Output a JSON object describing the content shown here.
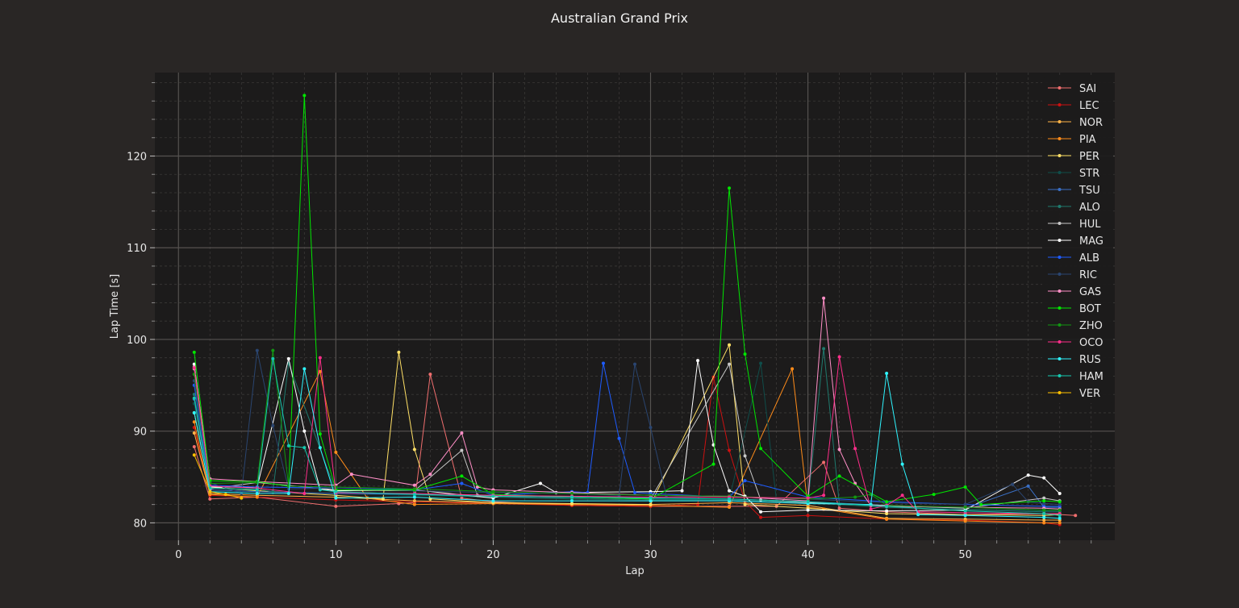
{
  "chart_data": {
    "type": "line",
    "title": "Australian Grand Prix",
    "xlabel": "Lap",
    "ylabel": "Lap Time [s]",
    "xlim": [
      -1.5,
      59.5
    ],
    "ylim": [
      78.1,
      129.1
    ],
    "xticks": [
      0,
      10,
      20,
      30,
      40,
      50
    ],
    "yticks": [
      80,
      90,
      100,
      110,
      120
    ],
    "grid": true,
    "legend_position": "top-right",
    "series": [
      {
        "name": "SAI",
        "color": "#f06e6e",
        "x": [
          1,
          2,
          5,
          10,
          14,
          15,
          16,
          18,
          20,
          25,
          30,
          35,
          38,
          41,
          42,
          45,
          50,
          55,
          57
        ],
        "y": [
          88.3,
          82.6,
          82.8,
          81.8,
          82.1,
          82.2,
          96.2,
          82.7,
          82.3,
          81.9,
          81.8,
          81.8,
          81.8,
          86.6,
          81.6,
          81.2,
          80.9,
          81.0,
          80.8
        ]
      },
      {
        "name": "LEC",
        "color": "#cc1111",
        "x": [
          1,
          2,
          5,
          10,
          15,
          20,
          25,
          30,
          33,
          34,
          35,
          36,
          37,
          40,
          45,
          50,
          55,
          56
        ],
        "y": [
          90.4,
          83.0,
          82.8,
          82.5,
          82.3,
          82.1,
          81.9,
          81.8,
          82.0,
          95.9,
          87.9,
          82.3,
          80.6,
          80.8,
          80.4,
          80.3,
          80.0,
          79.8
        ]
      },
      {
        "name": "NOR",
        "color": "#ffb347",
        "x": [
          1,
          2,
          5,
          10,
          15,
          20,
          25,
          30,
          35,
          40,
          45,
          50,
          55,
          56
        ],
        "y": [
          89.8,
          83.2,
          83.0,
          82.8,
          82.4,
          82.2,
          82.0,
          82.0,
          82.2,
          81.9,
          80.5,
          80.4,
          80.3,
          80.3
        ]
      },
      {
        "name": "PIA",
        "color": "#ff8c1a",
        "x": [
          1,
          2,
          5,
          9,
          10,
          12,
          15,
          20,
          25,
          30,
          35,
          39,
          40,
          41,
          45,
          50,
          55,
          56
        ],
        "y": [
          91.0,
          83.1,
          82.8,
          96.5,
          87.7,
          82.7,
          82.0,
          82.1,
          82.0,
          81.9,
          81.7,
          96.8,
          81.7,
          81.5,
          80.4,
          80.2,
          80.0,
          80.0
        ]
      },
      {
        "name": "PER",
        "color": "#ffe066",
        "x": [
          1,
          2,
          5,
          10,
          13,
          14,
          15,
          16,
          20,
          25,
          30,
          35,
          36,
          40,
          45,
          50,
          55,
          56
        ],
        "y": [
          92.0,
          83.9,
          83.5,
          83.0,
          82.6,
          98.6,
          88.0,
          82.6,
          82.2,
          82.1,
          82.0,
          99.4,
          82.0,
          81.6,
          81.0,
          80.9,
          80.8,
          80.9
        ]
      },
      {
        "name": "STR",
        "color": "#0f4d4a",
        "x": [
          1,
          2,
          5,
          10,
          15,
          20,
          25,
          30,
          35,
          37,
          38,
          40,
          45,
          50,
          55,
          56
        ],
        "y": [
          93.0,
          83.4,
          83.4,
          83.2,
          83.0,
          82.8,
          82.7,
          82.6,
          82.5,
          97.4,
          82.4,
          82.2,
          81.8,
          81.5,
          81.3,
          81.3
        ]
      },
      {
        "name": "TSU",
        "color": "#3a6fc4",
        "x": [
          1,
          2,
          5,
          10,
          15,
          20,
          25,
          30,
          35,
          40,
          45,
          50,
          54,
          55,
          56
        ],
        "y": [
          93.5,
          83.6,
          83.4,
          83.2,
          83.1,
          82.9,
          82.8,
          82.7,
          82.6,
          82.3,
          81.9,
          81.6,
          84.0,
          81.7,
          81.7
        ]
      },
      {
        "name": "ALO",
        "color": "#1f7a6e",
        "x": [
          1,
          2,
          5,
          6,
          7,
          10,
          15,
          20,
          25,
          30,
          35,
          40,
          41,
          42,
          45,
          50,
          55,
          56
        ],
        "y": [
          94.0,
          84.0,
          83.7,
          83.4,
          97.4,
          83.4,
          83.1,
          82.8,
          82.6,
          82.5,
          82.5,
          82.2,
          99.0,
          82.0,
          81.7,
          81.4,
          81.2,
          81.2
        ]
      },
      {
        "name": "HUL",
        "color": "#c7c7c7",
        "x": [
          1,
          2,
          5,
          10,
          15,
          18,
          19,
          20,
          25,
          30,
          35,
          36,
          37,
          40,
          45,
          50,
          55,
          56
        ],
        "y": [
          96.8,
          83.7,
          84.4,
          83.6,
          83.5,
          87.9,
          83.0,
          82.9,
          82.8,
          82.6,
          97.3,
          87.3,
          82.5,
          82.2,
          81.9,
          81.6,
          82.7,
          82.4
        ]
      },
      {
        "name": "MAG",
        "color": "#ffffff",
        "x": [
          1,
          2,
          5,
          7,
          8,
          9,
          10,
          15,
          20,
          23,
          24,
          30,
          32,
          33,
          34,
          35,
          36,
          37,
          40,
          45,
          50,
          54,
          55,
          56
        ],
        "y": [
          97.3,
          83.9,
          83.9,
          97.9,
          90.0,
          83.7,
          83.5,
          83.6,
          82.7,
          84.3,
          83.3,
          83.4,
          83.5,
          97.7,
          88.5,
          83.5,
          82.9,
          81.2,
          81.4,
          81.3,
          81.4,
          85.2,
          84.9,
          83.2
        ]
      },
      {
        "name": "ALB",
        "color": "#1e5cff",
        "x": [
          1,
          2,
          5,
          10,
          15,
          18,
          20,
          25,
          26,
          27,
          28,
          29,
          30,
          35,
          36,
          40,
          45,
          50,
          55,
          56
        ],
        "y": [
          95.0,
          84.1,
          83.9,
          83.8,
          83.6,
          84.3,
          83.0,
          83.4,
          83.3,
          97.4,
          89.2,
          83.3,
          83.2,
          82.8,
          84.6,
          82.8,
          82.3,
          82.0,
          81.8,
          81.8
        ]
      },
      {
        "name": "RIC",
        "color": "#2a4570",
        "x": [
          1,
          2,
          4,
          5,
          6,
          7,
          10,
          15,
          20,
          25,
          28,
          29,
          30,
          31,
          35,
          40,
          45,
          50,
          53,
          54,
          55,
          56
        ],
        "y": [
          95.5,
          84.4,
          83.2,
          98.8,
          90.6,
          83.7,
          83.8,
          83.5,
          83.3,
          83.2,
          83.0,
          97.3,
          90.4,
          83.0,
          82.8,
          82.6,
          82.2,
          82.0,
          84.2,
          82.3,
          82.1,
          82.0
        ]
      },
      {
        "name": "GAS",
        "color": "#ff8fc7",
        "x": [
          1,
          2,
          5,
          10,
          11,
          15,
          16,
          18,
          19,
          20,
          25,
          30,
          35,
          40,
          41,
          42,
          43,
          44,
          45,
          50,
          55,
          56
        ],
        "y": [
          97.0,
          84.8,
          84.5,
          84.1,
          85.3,
          84.1,
          85.3,
          89.8,
          83.9,
          83.6,
          83.3,
          83.0,
          82.9,
          82.4,
          104.5,
          88.0,
          84.3,
          81.9,
          81.8,
          81.7,
          81.6,
          81.5
        ]
      },
      {
        "name": "BOT",
        "color": "#00e600",
        "x": [
          1,
          2,
          5,
          7,
          8,
          9,
          10,
          15,
          18,
          20,
          25,
          30,
          34,
          35,
          36,
          37,
          40,
          42,
          45,
          48,
          50,
          51,
          55,
          56
        ],
        "y": [
          98.6,
          84.6,
          84.5,
          84.0,
          126.6,
          89.7,
          83.6,
          83.6,
          85.1,
          83.1,
          82.8,
          82.6,
          86.4,
          116.5,
          98.4,
          88.1,
          82.9,
          85.1,
          82.3,
          83.1,
          83.9,
          82.0,
          82.4,
          82.3
        ]
      },
      {
        "name": "ZHO",
        "color": "#129612",
        "x": [
          1,
          2,
          5,
          6,
          7,
          10,
          15,
          20,
          25,
          30,
          35,
          40,
          43,
          44,
          45,
          50,
          55,
          56
        ],
        "y": [
          96.2,
          84.3,
          84.4,
          98.8,
          84.0,
          83.9,
          83.7,
          83.4,
          83.2,
          83.0,
          82.9,
          82.6,
          82.8,
          83.1,
          81.9,
          81.7,
          81.4,
          81.4
        ]
      },
      {
        "name": "OCO",
        "color": "#ff2e8a",
        "x": [
          1,
          2,
          5,
          8,
          9,
          10,
          15,
          20,
          25,
          30,
          35,
          40,
          41,
          42,
          43,
          44,
          45,
          46,
          47,
          50,
          55,
          56
        ],
        "y": [
          96.9,
          84.0,
          83.8,
          83.2,
          98.0,
          83.3,
          83.2,
          83.0,
          82.9,
          82.8,
          82.8,
          82.7,
          83.0,
          98.1,
          88.1,
          81.5,
          81.9,
          83.0,
          81.2,
          81.1,
          81.0,
          81.0
        ]
      },
      {
        "name": "RUS",
        "color": "#2ff5ff",
        "x": [
          1,
          2,
          5,
          7,
          8,
          9,
          10,
          15,
          20,
          25,
          30,
          35,
          40,
          44,
          45,
          46,
          47,
          50,
          55,
          56
        ],
        "y": [
          92.0,
          83.4,
          83.2,
          83.2,
          96.8,
          88.2,
          82.7,
          82.8,
          82.4,
          82.4,
          82.4,
          82.4,
          82.1,
          82.0,
          96.3,
          86.4,
          80.9,
          80.8,
          80.6,
          80.5
        ]
      },
      {
        "name": "HAM",
        "color": "#16c9b0",
        "x": [
          1,
          2,
          5,
          6,
          7,
          8,
          9,
          10,
          15,
          20,
          25,
          30,
          35,
          40,
          45,
          50,
          55,
          56
        ],
        "y": [
          93.6,
          83.8,
          83.6,
          97.9,
          88.4,
          88.2,
          83.6,
          83.4,
          83.1,
          82.9,
          82.8,
          82.7,
          82.6,
          82.3,
          81.8,
          81.3,
          81.0,
          80.8
        ]
      },
      {
        "name": "VER",
        "color": "#ffc000",
        "x": [
          1,
          2,
          3,
          4
        ],
        "y": [
          87.4,
          83.4,
          83.1,
          82.7
        ]
      }
    ]
  }
}
